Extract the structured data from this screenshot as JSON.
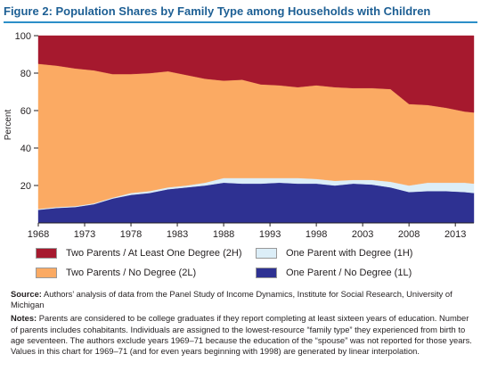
{
  "figure_title": "Figure 2: Population Shares by Family Type among Households with Children",
  "chart_data": {
    "type": "area",
    "stacked": true,
    "ylabel": "Percent",
    "ylim": [
      0,
      100
    ],
    "yticks": [
      20,
      40,
      60,
      80,
      100
    ],
    "xlim": [
      1968,
      2015
    ],
    "xticks": [
      1968,
      1973,
      1978,
      1983,
      1988,
      1993,
      1998,
      2003,
      2008,
      2013
    ],
    "x": [
      1968,
      1970,
      1972,
      1974,
      1976,
      1978,
      1980,
      1982,
      1984,
      1986,
      1988,
      1990,
      1992,
      1994,
      1996,
      1998,
      2000,
      2002,
      2004,
      2006,
      2008,
      2010,
      2012,
      2014,
      2015
    ],
    "series": [
      {
        "name": "One Parent / No Degree (1L)",
        "color": "#2e3192",
        "values": [
          7,
          8,
          8.5,
          10,
          13,
          15,
          16,
          18,
          19,
          20,
          21.5,
          21,
          21,
          21.5,
          21,
          21,
          20,
          21,
          20.5,
          19,
          16.5,
          17,
          17,
          16.5,
          16
        ]
      },
      {
        "name": "One Parent with Degree (1H)",
        "color": "#dceef8",
        "values": [
          0.5,
          0.5,
          0.5,
          0.5,
          0.5,
          1,
          1,
          1,
          1,
          1.5,
          2.5,
          3,
          3,
          2.5,
          3,
          2.5,
          2.5,
          2,
          2.5,
          3,
          3.5,
          4.5,
          4.5,
          5,
          5
        ]
      },
      {
        "name": "Two Parents / No Degree (2L)",
        "color": "#fbaa63",
        "values": [
          77.5,
          75.5,
          73.5,
          71,
          66,
          63.5,
          63,
          62,
          59,
          55.5,
          52,
          52.5,
          50,
          49.5,
          48.5,
          50,
          50,
          49,
          49,
          49.5,
          43.5,
          41.5,
          40,
          38,
          38
        ]
      },
      {
        "name": "Two Parents / At Least One Degree (2H)",
        "color": "#a6192e",
        "values": [
          15,
          16,
          17.5,
          18.5,
          20.5,
          20.5,
          20,
          19,
          21,
          23,
          24,
          23.5,
          26,
          26.5,
          27.5,
          26.5,
          27.5,
          28,
          28,
          28.5,
          36.5,
          37,
          38.5,
          40.5,
          41
        ]
      }
    ],
    "grid": false,
    "legend_position": "bottom"
  },
  "legend": [
    {
      "label": "Two Parents / At Least One Degree (2H)",
      "color": "#a6192e",
      "series": 3
    },
    {
      "label": "One Parent with Degree (1H)",
      "color": "#dceef8",
      "series": 1
    },
    {
      "label": "Two Parents / No Degree (2L)",
      "color": "#fbaa63",
      "series": 2
    },
    {
      "label": "One Parent / No Degree (1L)",
      "color": "#2e3192",
      "series": 0
    }
  ],
  "source": {
    "label": "Source:",
    "text": "Authors’ analysis of data from the Panel Study of Income Dynamics, Institute for Social Research, University of Michigan"
  },
  "notes": {
    "label": "Notes:",
    "text": "Parents are considered to be college graduates if they report completing at least sixteen years of education. Number of parents includes cohabitants. Individuals are assigned to the lowest-resource “family type” they experienced from birth to age seventeen. The authors exclude years 1969–71 because the education of the “spouse” was not reported for those years. Values in this chart for 1969–71 (and for even years beginning with 1998) are generated by linear interpolation."
  }
}
